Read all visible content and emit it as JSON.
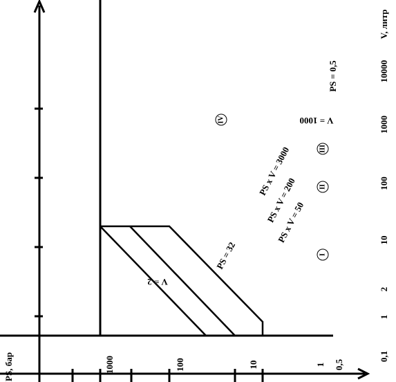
{
  "axis_v": {
    "label": "V, литр",
    "ticks": [
      "0,1",
      "1",
      "2",
      "10",
      "100",
      "1000",
      "10000"
    ]
  },
  "axis_ps": {
    "label": "PS, бар",
    "ticks": [
      "0,5",
      "1",
      "10",
      "100",
      "1000"
    ]
  },
  "regions": [
    "I",
    "II",
    "III",
    "IV"
  ],
  "lines": [
    "PS = 0,5",
    "V = 1000",
    "PS x V = 3000",
    "PS x V = 200",
    "PS x V = 50",
    "PS = 32",
    "V = 2"
  ]
}
